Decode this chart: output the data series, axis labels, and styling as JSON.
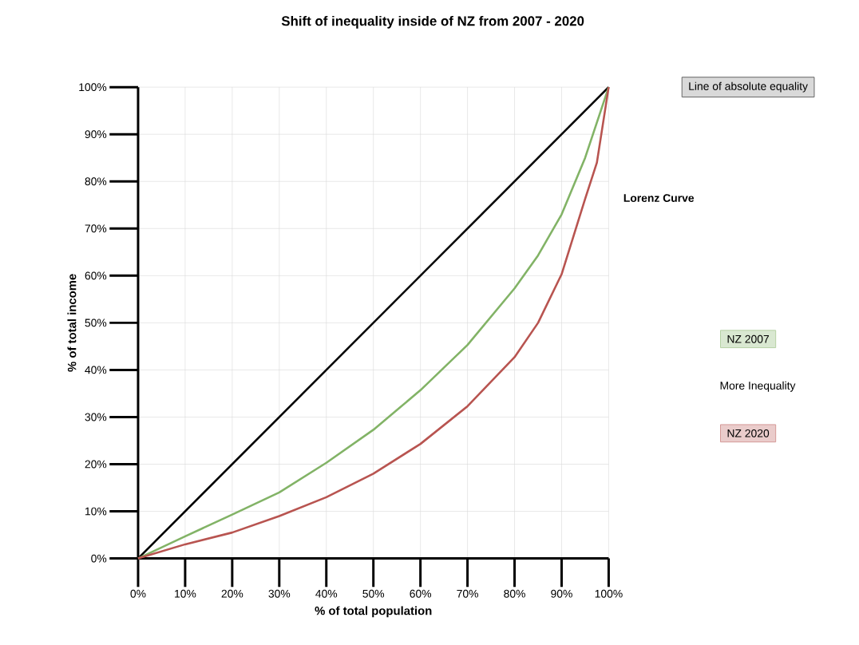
{
  "chart_data": {
    "type": "line",
    "title": "Shift of inequality inside of NZ from 2007 - 2020",
    "xlabel": "% of total population",
    "ylabel": "% of total income",
    "xlim": [
      0,
      100
    ],
    "ylim": [
      0,
      100
    ],
    "xticks": [
      {
        "value": 0,
        "label": "0%"
      },
      {
        "value": 10,
        "label": "10%"
      },
      {
        "value": 20,
        "label": "20%"
      },
      {
        "value": 30,
        "label": "30%"
      },
      {
        "value": 40,
        "label": "40%"
      },
      {
        "value": 50,
        "label": "50%"
      },
      {
        "value": 60,
        "label": "60%"
      },
      {
        "value": 70,
        "label": "70%"
      },
      {
        "value": 80,
        "label": "80%"
      },
      {
        "value": 90,
        "label": "90%"
      },
      {
        "value": 100,
        "label": "100%"
      }
    ],
    "yticks": [
      {
        "value": 0,
        "label": "0%"
      },
      {
        "value": 10,
        "label": "10%"
      },
      {
        "value": 20,
        "label": "20%"
      },
      {
        "value": 30,
        "label": "30%"
      },
      {
        "value": 40,
        "label": "40%"
      },
      {
        "value": 50,
        "label": "50%"
      },
      {
        "value": 60,
        "label": "60%"
      },
      {
        "value": 70,
        "label": "70%"
      },
      {
        "value": 80,
        "label": "80%"
      },
      {
        "value": 90,
        "label": "90%"
      },
      {
        "value": 100,
        "label": "100%"
      }
    ],
    "series": [
      {
        "name": "Line of absolute equality",
        "color": "#000000",
        "x": [
          0,
          100
        ],
        "values": [
          0,
          100
        ]
      },
      {
        "name": "NZ 2007",
        "color": "#82b366",
        "x": [
          0,
          10,
          20,
          30,
          40,
          50,
          60,
          70,
          80,
          85,
          90,
          95,
          100
        ],
        "values": [
          0,
          4.7,
          9.3,
          14,
          20.3,
          27.3,
          35.7,
          45.3,
          57.3,
          64.3,
          73,
          85,
          100
        ]
      },
      {
        "name": "NZ 2020",
        "color": "#b85450",
        "x": [
          0,
          10,
          20,
          30,
          40,
          50,
          60,
          70,
          80,
          85,
          90,
          95,
          97.5,
          100
        ],
        "values": [
          0,
          3,
          5.5,
          9,
          13,
          18,
          24.3,
          32.3,
          42.7,
          50,
          60.3,
          76.3,
          84,
          100
        ]
      }
    ],
    "annotations": [
      "Lorenz Curve",
      "More Inequality"
    ],
    "grid": true,
    "legend": "right",
    "marker": "none",
    "line_style": "solid"
  }
}
